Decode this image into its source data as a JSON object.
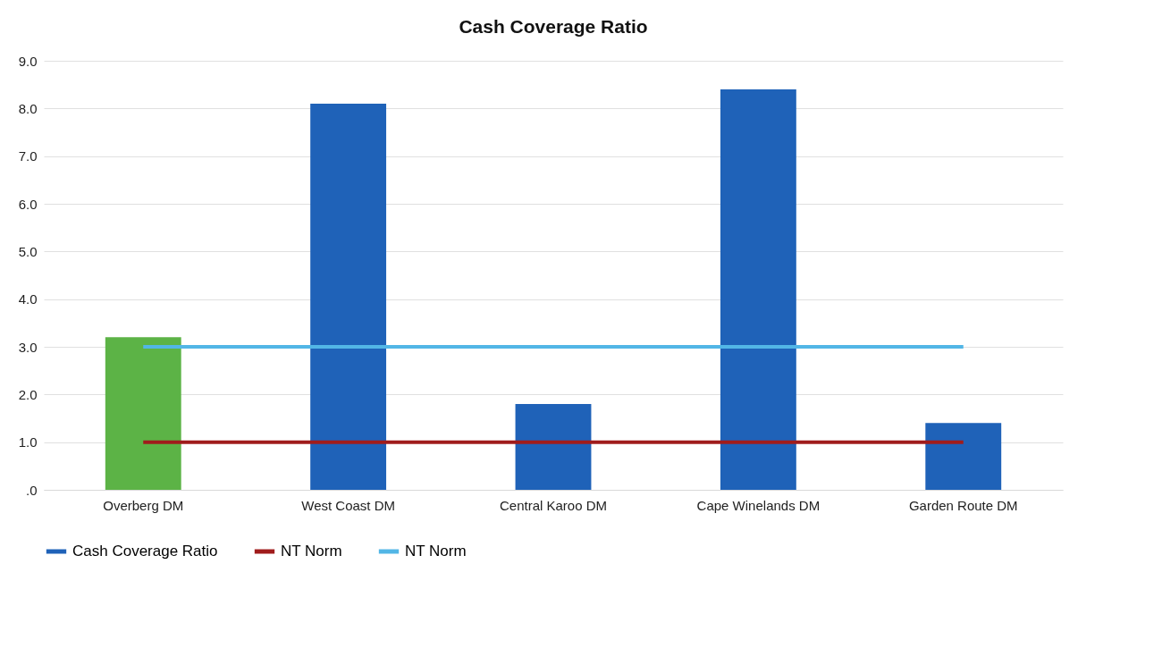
{
  "chart_data": {
    "type": "bar",
    "title": "Cash Coverage Ratio",
    "categories": [
      "Overberg DM",
      "West Coast DM",
      "Central Karoo DM",
      "Cape Winelands DM",
      "Garden Route DM"
    ],
    "series": [
      {
        "name": "Cash Coverage Ratio",
        "color": "#1f62b8",
        "colors": [
          "#5cb346",
          "#1f62b8",
          "#1f62b8",
          "#1f62b8",
          "#1f62b8"
        ],
        "values": [
          3.2,
          8.1,
          1.8,
          8.4,
          1.4
        ]
      },
      {
        "name": "NT Norm",
        "type": "line",
        "color": "#a01c1c",
        "values": [
          1,
          1,
          1,
          1,
          1
        ]
      },
      {
        "name": "NT Norm",
        "type": "line",
        "color": "#52b6e6",
        "values": [
          3,
          3,
          3,
          3,
          3
        ]
      }
    ],
    "ylim": [
      0,
      9
    ],
    "yticks": [
      {
        "value": 0,
        "label": ".0"
      },
      {
        "value": 1,
        "label": "1.0"
      },
      {
        "value": 2,
        "label": "2.0"
      },
      {
        "value": 3,
        "label": "3.0"
      },
      {
        "value": 4,
        "label": "4.0"
      },
      {
        "value": 5,
        "label": "5.0"
      },
      {
        "value": 6,
        "label": "6.0"
      },
      {
        "value": 7,
        "label": "7.0"
      },
      {
        "value": 8,
        "label": "8.0"
      },
      {
        "value": 9,
        "label": "9.0"
      }
    ],
    "grid": "y",
    "legend": "bottom",
    "marker": "none"
  }
}
